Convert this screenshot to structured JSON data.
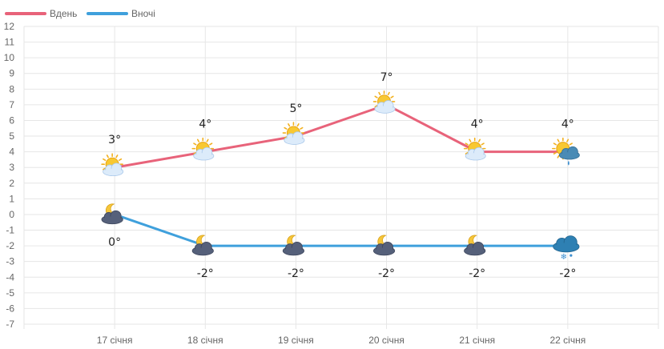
{
  "chart_data": {
    "type": "line",
    "categories": [
      "17 січня",
      "18 січня",
      "19 січня",
      "20 січня",
      "21 січня",
      "22 січня"
    ],
    "ylim": [
      -7,
      12
    ],
    "yticks": [
      12,
      11,
      10,
      9,
      8,
      7,
      6,
      5,
      4,
      3,
      2,
      1,
      0,
      -1,
      -2,
      -3,
      -4,
      -5,
      -6,
      -7
    ],
    "grid": true,
    "legend_position": "top-left",
    "series": [
      {
        "name": "Вдень",
        "color": "#E8637A",
        "values": [
          3,
          4,
          5,
          7,
          4,
          4
        ],
        "labels": [
          "3°",
          "4°",
          "5°",
          "7°",
          "4°",
          "4°"
        ],
        "label_position": "above",
        "icons": [
          "sun-cloud-icon",
          "sun-cloud-icon",
          "sun-cloud-icon",
          "sun-cloud-icon",
          "sun-cloud-icon",
          "sun-rain-cloud-icon"
        ]
      },
      {
        "name": "Вночі",
        "color": "#3FA0DC",
        "values": [
          0,
          -2,
          -2,
          -2,
          -2,
          -2
        ],
        "labels": [
          "0°",
          "-2°",
          "-2°",
          "-2°",
          "-2°",
          "-2°"
        ],
        "label_position": "below",
        "icons": [
          "moon-cloud-icon",
          "moon-cloud-icon",
          "moon-cloud-icon",
          "moon-cloud-icon",
          "moon-cloud-icon",
          "snow-cloud-icon"
        ]
      }
    ]
  }
}
